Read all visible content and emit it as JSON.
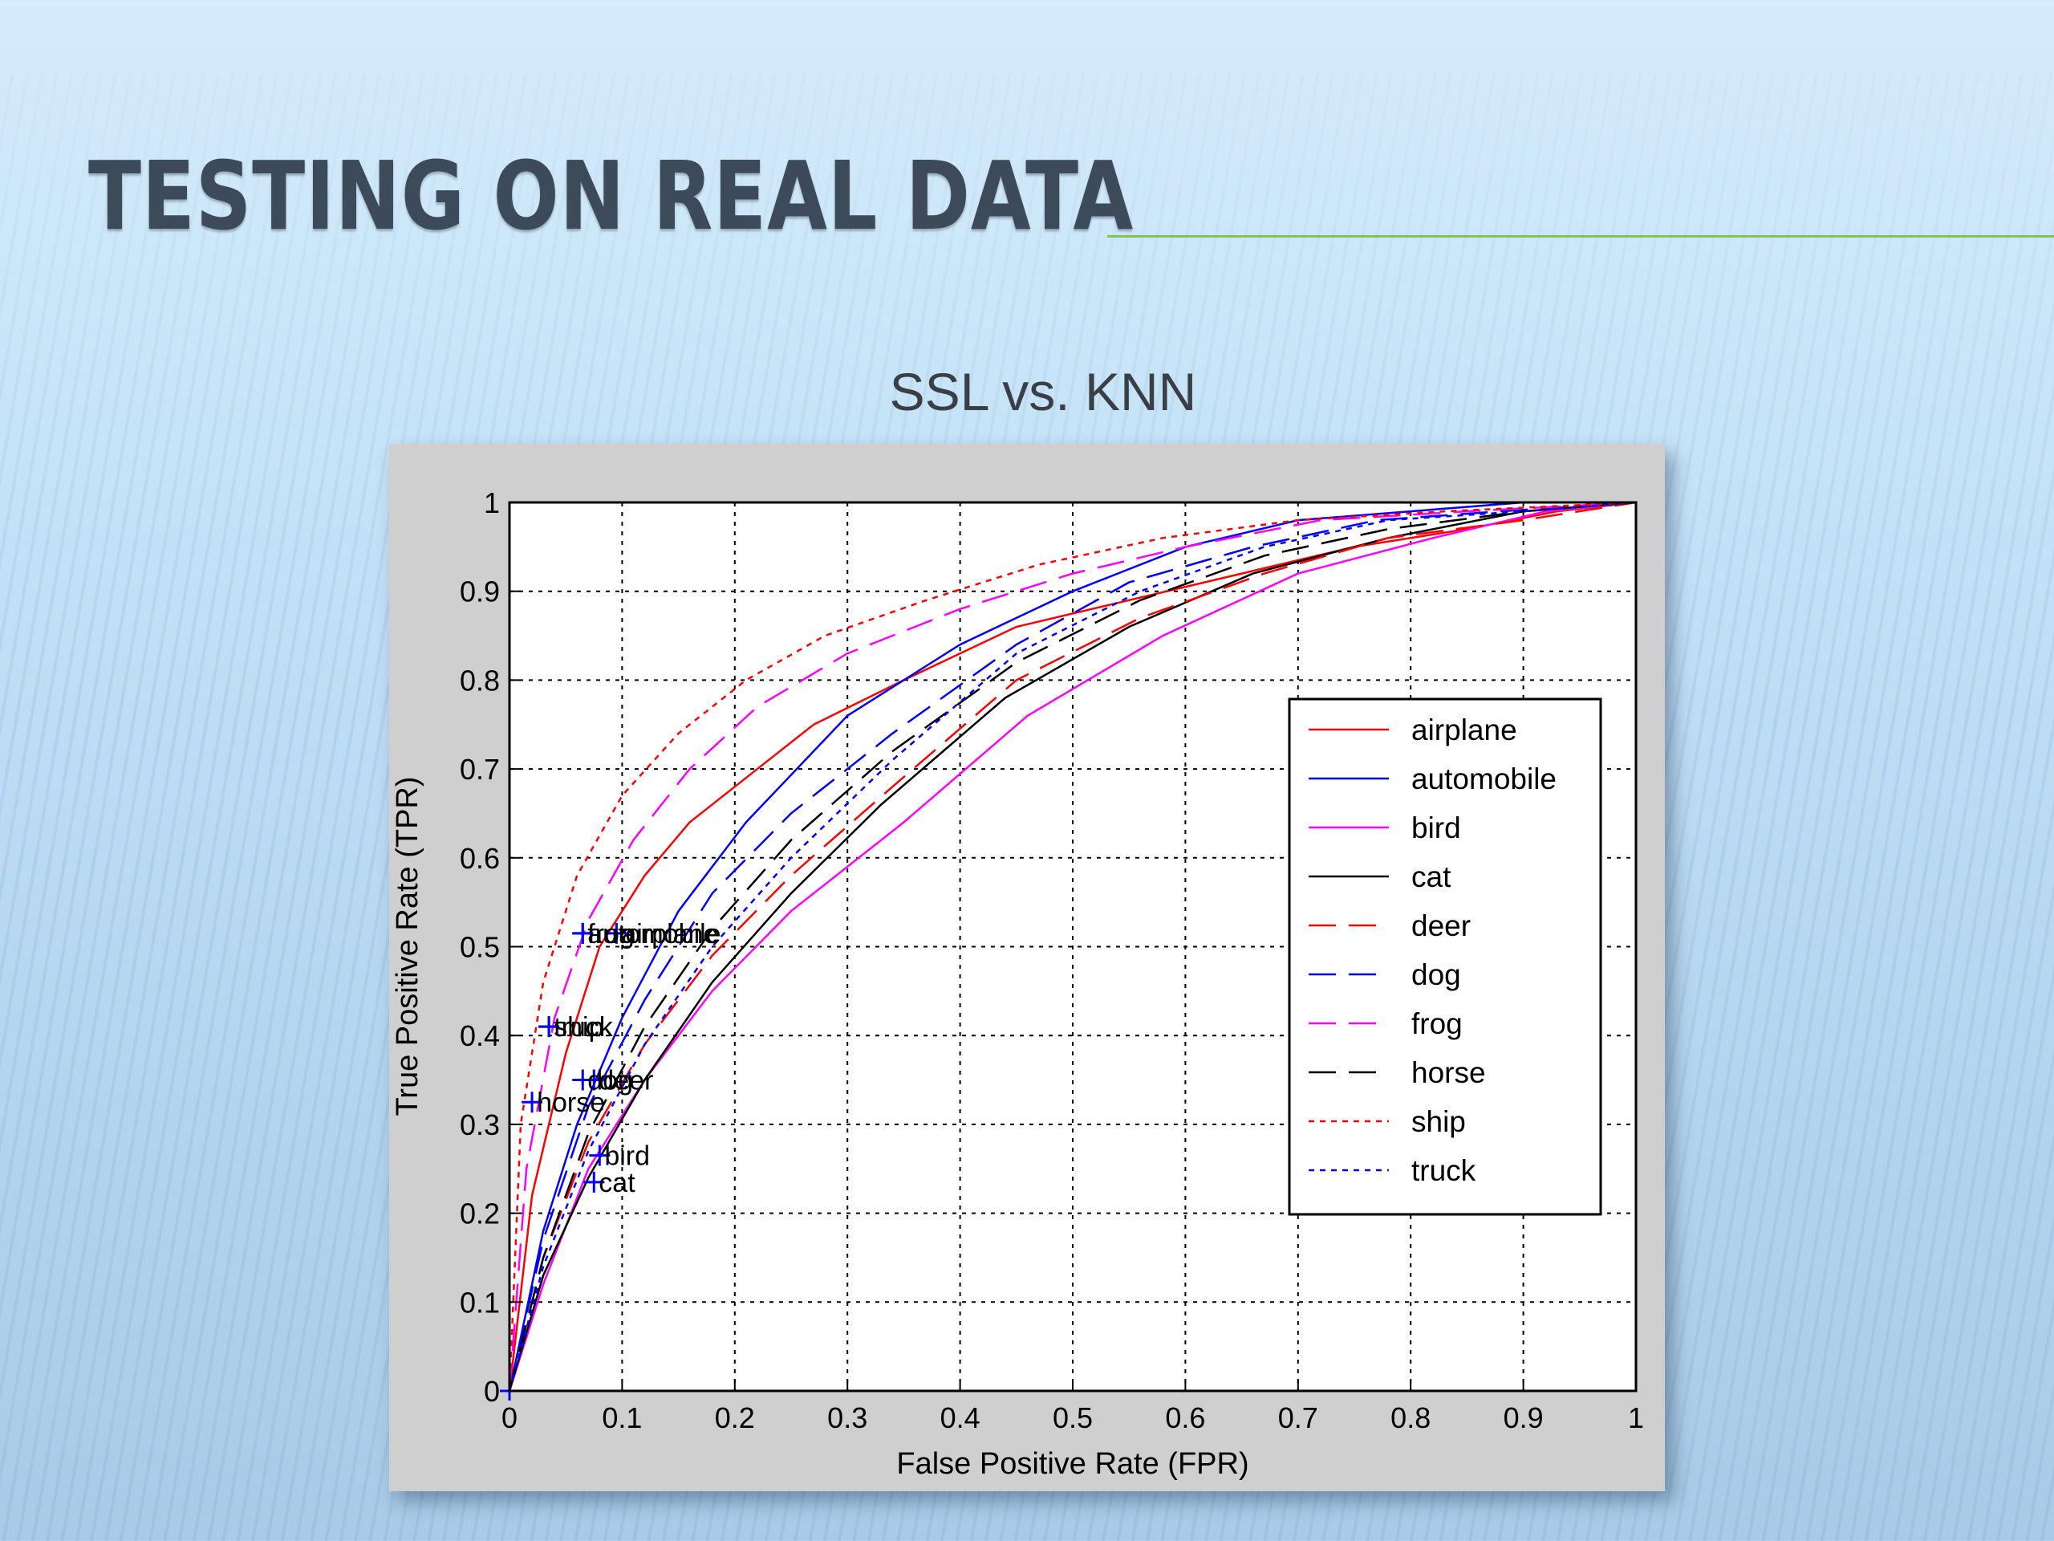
{
  "slide": {
    "title": "TESTING ON REAL DATA",
    "subtitle": "SSL vs. KNN"
  },
  "colors": {
    "title_rule": "#86c24f",
    "chart_bg": "#cfcfcf"
  },
  "chart_data": {
    "type": "line",
    "title": "",
    "xlabel": "False Positive Rate (FPR)",
    "ylabel": "True Positive Rate (TPR)",
    "xlim": [
      0,
      1
    ],
    "ylim": [
      0,
      1
    ],
    "xticks": [
      "0",
      "0.1",
      "0.2",
      "0.3",
      "0.4",
      "0.5",
      "0.6",
      "0.7",
      "0.8",
      "0.9",
      "1"
    ],
    "yticks": [
      "0",
      "0.1",
      "0.2",
      "0.3",
      "0.4",
      "0.5",
      "0.6",
      "0.7",
      "0.8",
      "0.9",
      "1"
    ],
    "grid": true,
    "legend_position": "right",
    "series": [
      {
        "name": "airplane",
        "color": "#ff0000",
        "dash": "solid",
        "x": [
          0,
          0.02,
          0.05,
          0.08,
          0.12,
          0.16,
          0.21,
          0.27,
          0.35,
          0.45,
          0.55,
          0.65,
          0.75,
          0.85,
          0.93,
          1
        ],
        "y": [
          0,
          0.22,
          0.38,
          0.5,
          0.58,
          0.64,
          0.69,
          0.75,
          0.8,
          0.86,
          0.89,
          0.92,
          0.95,
          0.97,
          0.99,
          1
        ],
        "marker": {
          "x": 0.095,
          "y": 0.515,
          "label": "airplane"
        }
      },
      {
        "name": "automobile",
        "color": "#0000ff",
        "dash": "solid",
        "x": [
          0,
          0.03,
          0.06,
          0.1,
          0.15,
          0.21,
          0.3,
          0.4,
          0.5,
          0.6,
          0.7,
          0.8,
          0.9,
          1
        ],
        "y": [
          0,
          0.18,
          0.3,
          0.42,
          0.54,
          0.64,
          0.76,
          0.84,
          0.9,
          0.95,
          0.98,
          0.99,
          1,
          1
        ],
        "marker": {
          "x": 0.065,
          "y": 0.515,
          "label": "automobile"
        }
      },
      {
        "name": "bird",
        "color": "#ff00ff",
        "dash": "solid",
        "x": [
          0,
          0.03,
          0.07,
          0.12,
          0.18,
          0.25,
          0.35,
          0.46,
          0.58,
          0.7,
          0.82,
          0.92,
          1
        ],
        "y": [
          0,
          0.12,
          0.25,
          0.35,
          0.45,
          0.54,
          0.64,
          0.76,
          0.85,
          0.92,
          0.96,
          0.99,
          1
        ],
        "marker": {
          "x": 0.08,
          "y": 0.265,
          "label": "bird"
        }
      },
      {
        "name": "cat",
        "color": "#000000",
        "dash": "solid",
        "x": [
          0,
          0.03,
          0.07,
          0.12,
          0.18,
          0.25,
          0.33,
          0.44,
          0.55,
          0.66,
          0.78,
          0.9,
          1
        ],
        "y": [
          0,
          0.13,
          0.24,
          0.35,
          0.46,
          0.56,
          0.66,
          0.78,
          0.86,
          0.92,
          0.96,
          0.99,
          1
        ],
        "marker": {
          "x": 0.075,
          "y": 0.235,
          "label": "cat"
        }
      },
      {
        "name": "deer",
        "color": "#ff0000",
        "dash": "long",
        "x": [
          0,
          0.03,
          0.07,
          0.12,
          0.18,
          0.25,
          0.34,
          0.45,
          0.56,
          0.67,
          0.78,
          0.9,
          1
        ],
        "y": [
          0,
          0.15,
          0.28,
          0.39,
          0.49,
          0.58,
          0.68,
          0.8,
          0.87,
          0.92,
          0.96,
          0.98,
          1
        ],
        "marker": {
          "x": 0.075,
          "y": 0.35,
          "label": "deer"
        }
      },
      {
        "name": "dog",
        "color": "#0000ff",
        "dash": "long",
        "x": [
          0,
          0.03,
          0.07,
          0.12,
          0.18,
          0.25,
          0.34,
          0.45,
          0.55,
          0.66,
          0.77,
          0.88,
          1
        ],
        "y": [
          0,
          0.17,
          0.32,
          0.44,
          0.56,
          0.65,
          0.74,
          0.84,
          0.91,
          0.95,
          0.98,
          0.99,
          1
        ],
        "marker": {
          "x": 0.065,
          "y": 0.35,
          "label": "dog"
        }
      },
      {
        "name": "frog",
        "color": "#ff00ff",
        "dash": "long",
        "x": [
          0,
          0.015,
          0.04,
          0.07,
          0.11,
          0.16,
          0.22,
          0.3,
          0.4,
          0.5,
          0.6,
          0.72,
          0.85,
          1
        ],
        "y": [
          0,
          0.25,
          0.42,
          0.53,
          0.62,
          0.7,
          0.77,
          0.83,
          0.88,
          0.92,
          0.95,
          0.98,
          0.99,
          1
        ],
        "marker": {
          "x": 0.065,
          "y": 0.515,
          "label": "frog"
        }
      },
      {
        "name": "horse",
        "color": "#000000",
        "dash": "long",
        "x": [
          0,
          0.03,
          0.07,
          0.12,
          0.18,
          0.25,
          0.34,
          0.45,
          0.56,
          0.67,
          0.78,
          0.9,
          1
        ],
        "y": [
          0,
          0.15,
          0.29,
          0.41,
          0.52,
          0.62,
          0.72,
          0.82,
          0.89,
          0.94,
          0.97,
          0.99,
          1
        ],
        "marker": {
          "x": 0.02,
          "y": 0.325,
          "label": "horse"
        }
      },
      {
        "name": "ship",
        "color": "#ff0000",
        "dash": "dot",
        "x": [
          0,
          0.01,
          0.03,
          0.06,
          0.1,
          0.15,
          0.21,
          0.28,
          0.37,
          0.47,
          0.58,
          0.7,
          0.83,
          1
        ],
        "y": [
          0,
          0.3,
          0.46,
          0.58,
          0.67,
          0.74,
          0.8,
          0.85,
          0.89,
          0.93,
          0.96,
          0.98,
          0.99,
          1
        ],
        "marker": {
          "x": 0.035,
          "y": 0.41,
          "label": "ship"
        }
      },
      {
        "name": "truck",
        "color": "#0000ff",
        "dash": "dot",
        "x": [
          0,
          0.03,
          0.07,
          0.12,
          0.18,
          0.25,
          0.34,
          0.45,
          0.56,
          0.67,
          0.78,
          0.9,
          1
        ],
        "y": [
          0,
          0.14,
          0.27,
          0.39,
          0.5,
          0.6,
          0.71,
          0.83,
          0.9,
          0.95,
          0.98,
          0.99,
          1
        ],
        "marker": {
          "x": 0.035,
          "y": 0.41,
          "label": "truck"
        }
      }
    ]
  }
}
